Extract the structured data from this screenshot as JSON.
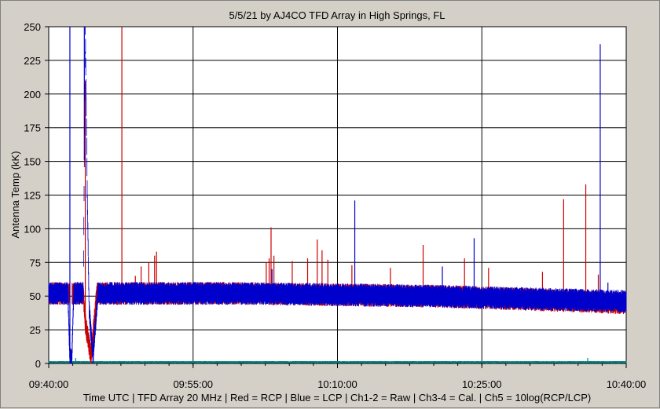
{
  "chart_data": {
    "type": "line",
    "title": "5/5/21  by  AJ4CO TFD Array  in  High Springs, FL",
    "xlabel": "Time UTC | TFD Array 20 MHz | Red = RCP | Blue = LCP | Ch1-2 = Raw | Ch3-4 = Cal. | Ch5 = 10log(RCP/LCP)",
    "ylabel": "Antenna Temp (kK)",
    "ylim": [
      0,
      250
    ],
    "yticks": [
      0,
      25,
      50,
      75,
      100,
      125,
      150,
      175,
      200,
      225,
      250
    ],
    "xlim": [
      "09:40:00",
      "10:40:00"
    ],
    "xticks": [
      "09:40:00",
      "09:55:00",
      "10:10:00",
      "10:25:00",
      "10:40:00"
    ],
    "grid": true,
    "series": [
      {
        "name": "RCP",
        "color": "#cc0000",
        "baseline": [
          [
            0,
            52
          ],
          [
            2.2,
            52
          ],
          [
            2.2,
            3
          ],
          [
            2.4,
            3
          ],
          [
            2.4,
            52
          ],
          [
            3.6,
            52
          ],
          [
            3.8,
            30
          ],
          [
            4.4,
            5
          ],
          [
            5.0,
            52
          ],
          [
            20,
            52
          ],
          [
            40,
            50
          ],
          [
            60,
            45
          ]
        ],
        "spikes": [
          [
            3.8,
            210
          ],
          [
            7.6,
            250
          ],
          [
            9.0,
            65
          ],
          [
            9.6,
            72
          ],
          [
            10.4,
            75
          ],
          [
            11.0,
            80
          ],
          [
            11.2,
            83
          ],
          [
            22.6,
            75
          ],
          [
            22.9,
            78
          ],
          [
            23.1,
            101
          ],
          [
            23.4,
            80
          ],
          [
            25.3,
            76
          ],
          [
            26.9,
            78
          ],
          [
            27.9,
            92
          ],
          [
            28.4,
            84
          ],
          [
            29.0,
            77
          ],
          [
            31.5,
            73
          ],
          [
            35.5,
            71
          ],
          [
            38.9,
            88
          ],
          [
            43.2,
            78
          ],
          [
            45.7,
            71
          ],
          [
            51.3,
            68
          ],
          [
            53.5,
            122
          ],
          [
            55.8,
            133
          ],
          [
            57.1,
            66
          ]
        ]
      },
      {
        "name": "LCP",
        "color": "#0000cc",
        "baseline": [
          [
            0,
            52
          ],
          [
            2.0,
            52
          ],
          [
            2.2,
            3
          ],
          [
            2.4,
            3
          ],
          [
            2.6,
            52
          ],
          [
            3.6,
            52
          ],
          [
            3.8,
            250
          ],
          [
            4.0,
            130
          ],
          [
            4.2,
            40
          ],
          [
            4.6,
            5
          ],
          [
            5.1,
            52
          ],
          [
            20,
            52
          ],
          [
            40,
            50
          ],
          [
            60,
            46
          ]
        ],
        "spikes": [
          [
            2.2,
            250
          ],
          [
            3.7,
            250
          ],
          [
            23.2,
            70
          ],
          [
            31.8,
            121
          ],
          [
            40.9,
            72
          ],
          [
            44.2,
            93
          ],
          [
            57.3,
            237
          ],
          [
            58.1,
            60
          ]
        ]
      },
      {
        "name": "Ch5",
        "color": "#008080",
        "baseline": [
          [
            0,
            1
          ],
          [
            60,
            1
          ]
        ],
        "spikes": [
          [
            2.8,
            4
          ],
          [
            56.0,
            4
          ]
        ]
      }
    ]
  }
}
